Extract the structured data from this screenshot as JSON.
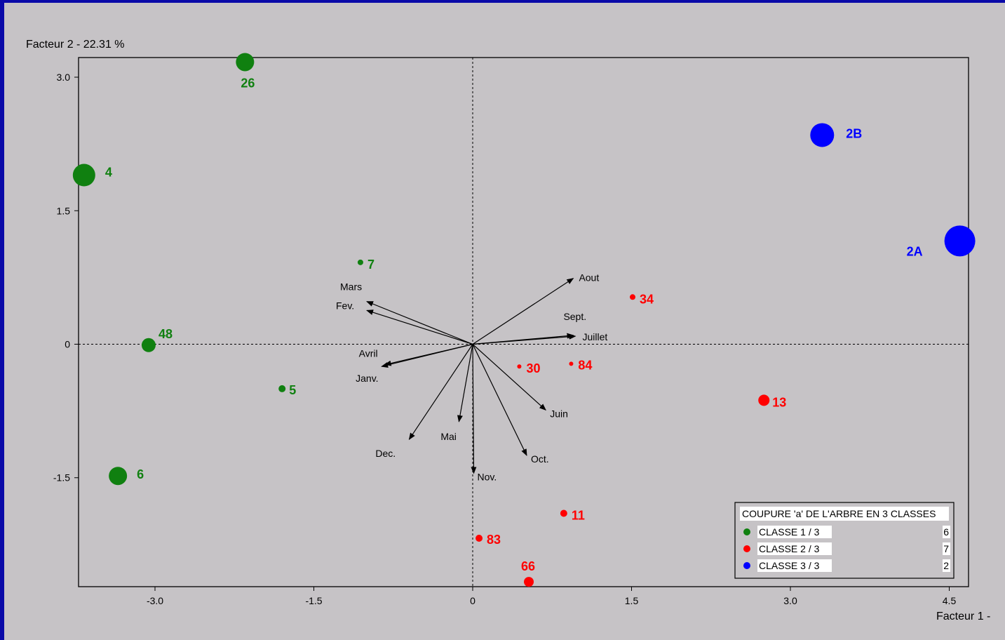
{
  "chart_data": {
    "type": "scatter",
    "xlabel": "Facteur 1  -",
    "ylabel": "Facteur 2  -  22.31 %",
    "xlim": [
      -3.7,
      4.7
    ],
    "ylim": [
      -2.7,
      3.2
    ],
    "xticks": [
      {
        "v": -3.0,
        "label": "-3.0"
      },
      {
        "v": -1.5,
        "label": "-1.5"
      },
      {
        "v": 0,
        "label": "0"
      },
      {
        "v": 1.5,
        "label": "1.5"
      },
      {
        "v": 3.0,
        "label": "3.0"
      },
      {
        "v": 4.5,
        "label": "4.5"
      }
    ],
    "yticks": [
      {
        "v": 3.0,
        "label": "3.0"
      },
      {
        "v": 1.5,
        "label": "1.5"
      },
      {
        "v": 0,
        "label": "0"
      },
      {
        "v": -1.5,
        "label": "-1.5"
      }
    ],
    "colors": {
      "green": "#108010",
      "red": "#ff0000",
      "blue": "#0000ff"
    },
    "points": [
      {
        "label": "26",
        "x": -2.15,
        "y": 3.17,
        "size": 13,
        "cls": 1,
        "lx": -6,
        "ly": 36
      },
      {
        "label": "4",
        "x": -3.67,
        "y": 1.9,
        "size": 16,
        "cls": 1,
        "lx": 30,
        "ly": 2
      },
      {
        "label": "48",
        "x": -3.06,
        "y": -0.01,
        "size": 10,
        "cls": 1,
        "lx": 14,
        "ly": -10
      },
      {
        "label": "7",
        "x": -1.06,
        "y": 0.92,
        "size": 4,
        "cls": 1,
        "lx": 10,
        "ly": 9
      },
      {
        "label": "5",
        "x": -1.8,
        "y": -0.5,
        "size": 5,
        "cls": 1,
        "lx": 10,
        "ly": 8
      },
      {
        "label": "6",
        "x": -3.35,
        "y": -1.48,
        "size": 13,
        "cls": 1,
        "lx": 27,
        "ly": 4
      },
      {
        "label": "34",
        "x": 1.51,
        "y": 0.53,
        "size": 4,
        "cls": 2,
        "lx": 10,
        "ly": 9
      },
      {
        "label": "30",
        "x": 0.44,
        "y": -0.25,
        "size": 3,
        "cls": 2,
        "lx": 10,
        "ly": 9
      },
      {
        "label": "84",
        "x": 0.93,
        "y": -0.22,
        "size": 3,
        "cls": 2,
        "lx": 10,
        "ly": 8
      },
      {
        "label": "13",
        "x": 2.75,
        "y": -0.63,
        "size": 8,
        "cls": 2,
        "lx": 12,
        "ly": 9
      },
      {
        "label": "11",
        "x": 0.86,
        "y": -1.9,
        "size": 5,
        "cls": 2,
        "lx": 11,
        "ly": 9
      },
      {
        "label": "83",
        "x": 0.06,
        "y": -2.18,
        "size": 5,
        "cls": 2,
        "lx": 11,
        "ly": 8
      },
      {
        "label": "66",
        "x": 0.53,
        "y": -2.67,
        "size": 7,
        "cls": 2,
        "lx": -11,
        "ly": -16
      },
      {
        "label": "2B",
        "x": 3.3,
        "y": 2.35,
        "size": 17,
        "cls": 3,
        "lx": 34,
        "ly": 4
      },
      {
        "label": "2A",
        "x": 4.6,
        "y": 1.16,
        "size": 22,
        "cls": 3,
        "lx": -76,
        "ly": 21
      }
    ],
    "vectors": [
      {
        "label": "Aout",
        "x": 0.95,
        "y": 0.74,
        "lx": 8,
        "ly": 4
      },
      {
        "label": "Sept.",
        "x": 0.95,
        "y": 0.1,
        "lx": -14,
        "ly": -22
      },
      {
        "label": "Juillet",
        "x": 0.97,
        "y": 0.09,
        "lx": 10,
        "ly": 6
      },
      {
        "label": "Mars",
        "x": -1.0,
        "y": 0.48,
        "lx": -38,
        "ly": -16
      },
      {
        "label": "Fev.",
        "x": -1.0,
        "y": 0.38,
        "lx": -44,
        "ly": -2
      },
      {
        "label": "Avril",
        "x": -0.83,
        "y": -0.23,
        "lx": -37,
        "ly": -11
      },
      {
        "label": "Janv.",
        "x": -0.86,
        "y": -0.25,
        "lx": -37,
        "ly": 22
      },
      {
        "label": "Juin",
        "x": 0.69,
        "y": -0.74,
        "lx": 6,
        "ly": 10
      },
      {
        "label": "Mai",
        "x": -0.13,
        "y": -0.87,
        "lx": -26,
        "ly": 26
      },
      {
        "label": "Dec.",
        "x": -0.6,
        "y": -1.07,
        "lx": -48,
        "ly": 25
      },
      {
        "label": "Oct.",
        "x": 0.51,
        "y": -1.25,
        "lx": 6,
        "ly": 10
      },
      {
        "label": "Nov.",
        "x": 0.01,
        "y": -1.45,
        "lx": 5,
        "ly": 10
      }
    ],
    "legend": {
      "title": "COUPURE 'a' DE L'ARBRE EN  3 CLASSES",
      "position": "bottom-right",
      "entries": [
        {
          "label": "CLASSE  1 / 3",
          "count": "6",
          "cls": 1
        },
        {
          "label": "CLASSE  2 / 3",
          "count": "7",
          "cls": 2
        },
        {
          "label": "CLASSE  3 / 3",
          "count": "2",
          "cls": 3
        }
      ]
    }
  }
}
